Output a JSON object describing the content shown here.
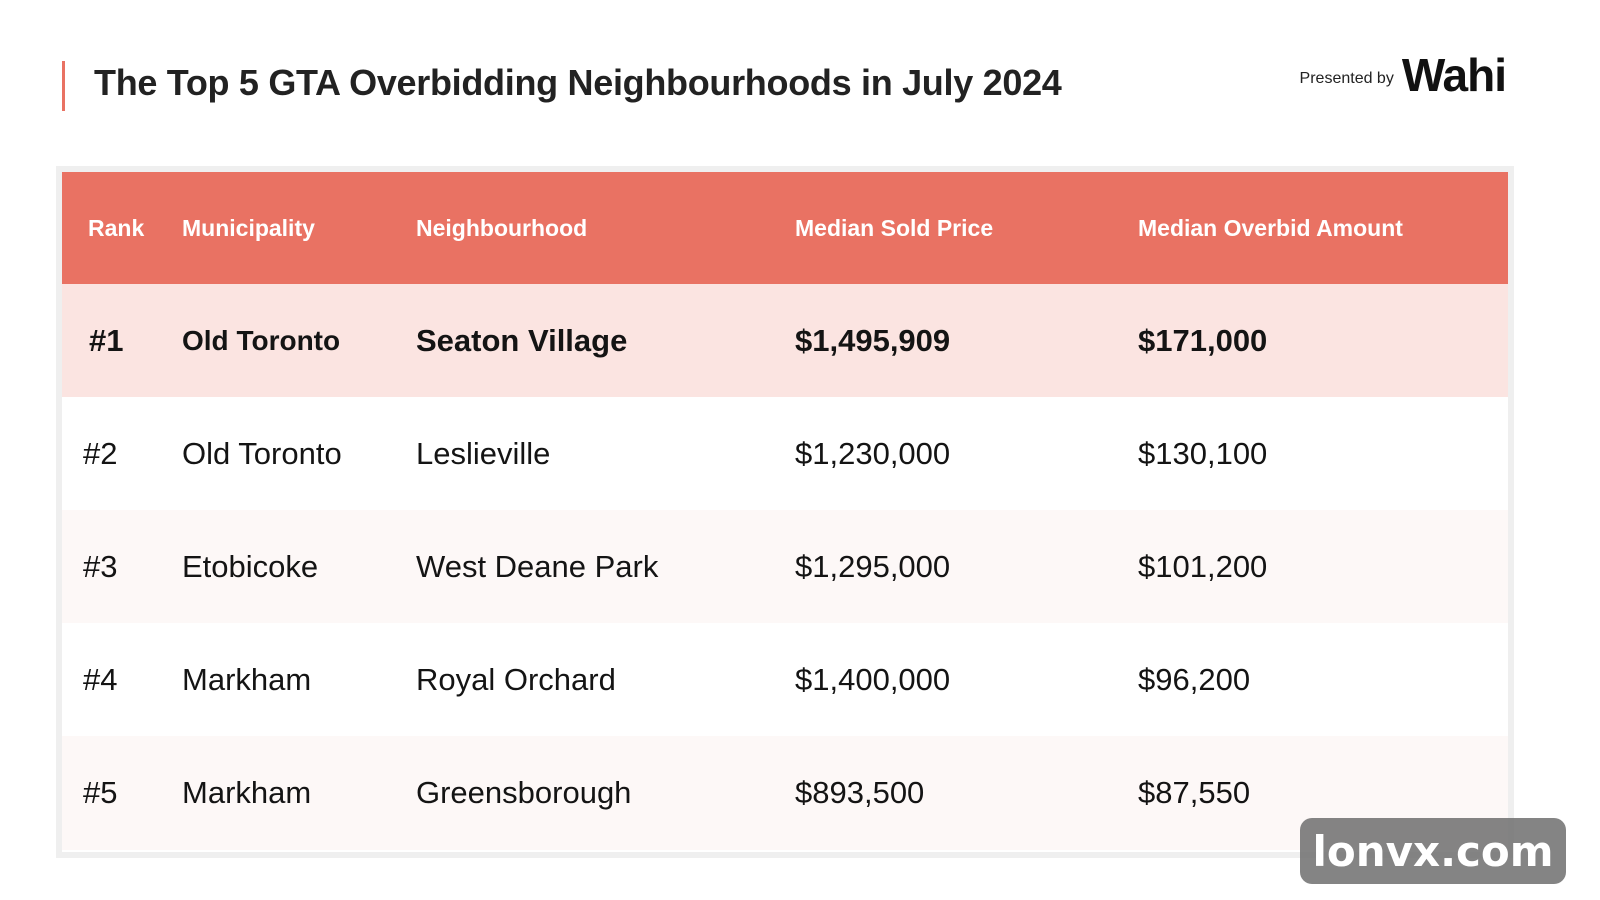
{
  "title": "The Top 5 GTA Overbidding Neighbourhoods in July 2024",
  "presented_by": {
    "label": "Presented by",
    "logo_text": "Wahi",
    "logo_accent_color": "#e8705f"
  },
  "accent_color": "#e97263",
  "table": {
    "headers": [
      "Rank",
      "Municipality",
      "Neighbourhood",
      "Median Sold Price",
      "Median Overbid Amount"
    ],
    "rows": [
      [
        "#1",
        "Old Toronto",
        "Seaton Village",
        "$1,495,909",
        "$171,000"
      ],
      [
        "#2",
        "Old Toronto",
        "Leslieville",
        "$1,230,000",
        "$130,100"
      ],
      [
        "#3",
        "Etobicoke",
        "West Deane Park",
        "$1,295,000",
        "$101,200"
      ],
      [
        "#4",
        "Markham",
        "Royal Orchard",
        "$1,400,000",
        "$96,200"
      ],
      [
        "#5",
        "Markham",
        "Greensborough",
        "$893,500",
        "$87,550"
      ]
    ]
  },
  "watermark": "lonvx.com"
}
